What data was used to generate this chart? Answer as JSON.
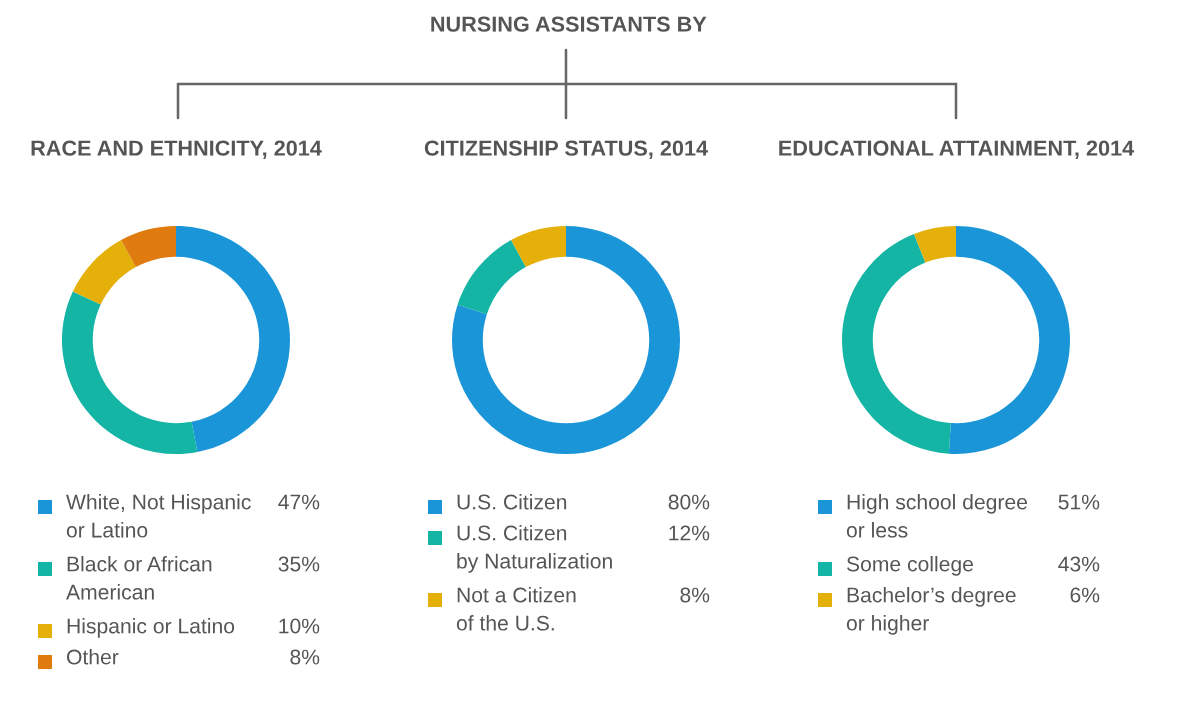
{
  "chart_data": [
    {
      "type": "donut",
      "title": "RACE AND ETHNICITY, 2014",
      "annotations": [
        "NURSING ASSISTANTS BY"
      ],
      "legend": "bottom",
      "categories": [
        "White, Not Hispanic\nor Latino",
        "Black or African\nAmerican",
        "Hispanic or Latino",
        "Other"
      ],
      "values": [
        47,
        35,
        10,
        8
      ],
      "value_labels": [
        "47%",
        "35%",
        "10%",
        "8%"
      ],
      "colors": [
        "#1a96d8",
        "#14b5a5",
        "#e5b00a",
        "#e07b10"
      ]
    },
    {
      "type": "donut",
      "title": "CITIZENSHIP STATUS, 2014",
      "legend": "bottom",
      "categories": [
        "U.S. Citizen",
        "U.S. Citizen\nby Naturalization",
        "Not a Citizen\nof the U.S."
      ],
      "values": [
        80,
        12,
        8
      ],
      "value_labels": [
        "80%",
        "12%",
        "8%"
      ],
      "colors": [
        "#1a96d8",
        "#14b5a5",
        "#e5b00a"
      ]
    },
    {
      "type": "donut",
      "title": "EDUCATIONAL ATTAINMENT, 2014",
      "legend": "bottom",
      "categories": [
        "High school degree\nor less",
        "Some college",
        "Bachelor’s degree\nor higher"
      ],
      "values": [
        51,
        43,
        6
      ],
      "value_labels": [
        "51%",
        "43%",
        "6%"
      ],
      "colors": [
        "#1a96d8",
        "#14b5a5",
        "#e5b00a"
      ]
    }
  ]
}
